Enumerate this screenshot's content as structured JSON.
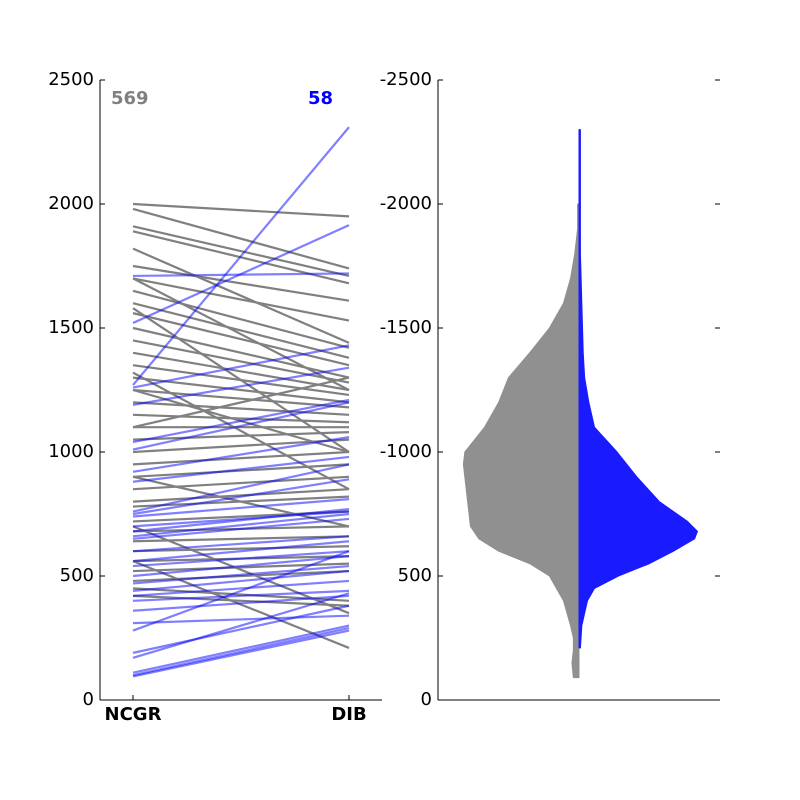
{
  "chart_data": [
    {
      "type": "slope",
      "categories": [
        "NCGR",
        "DIB"
      ],
      "ylim": [
        0,
        2500
      ],
      "yticks": [
        0,
        500,
        1000,
        1500,
        2000,
        2500
      ],
      "series": [
        {
          "label": "569",
          "color": "#808080",
          "opacity": 1,
          "lines": [
            [
              2000,
              1950
            ],
            [
              1980,
              1740
            ],
            [
              1910,
              1710
            ],
            [
              1890,
              1680
            ],
            [
              1820,
              1440
            ],
            [
              1750,
              1610
            ],
            [
              1700,
              1530
            ],
            [
              1650,
              1420
            ],
            [
              1600,
              1380
            ],
            [
              1560,
              1350
            ],
            [
              1500,
              1300
            ],
            [
              1450,
              1280
            ],
            [
              1400,
              1250
            ],
            [
              1350,
              1230
            ],
            [
              1300,
              1200
            ],
            [
              1250,
              1180
            ],
            [
              1200,
              1150
            ],
            [
              1150,
              1120
            ],
            [
              1100,
              1100
            ],
            [
              1050,
              1080
            ],
            [
              1000,
              1050
            ],
            [
              950,
              1000
            ],
            [
              900,
              950
            ],
            [
              850,
              900
            ],
            [
              800,
              850
            ],
            [
              780,
              820
            ],
            [
              720,
              760
            ],
            [
              680,
              700
            ],
            [
              640,
              660
            ],
            [
              600,
              620
            ],
            [
              560,
              580
            ],
            [
              520,
              550
            ],
            [
              480,
              520
            ],
            [
              450,
              400
            ],
            [
              420,
              380
            ],
            [
              560,
              210
            ],
            [
              700,
              350
            ],
            [
              1100,
              1300
            ],
            [
              1250,
              1000
            ],
            [
              900,
              700
            ],
            [
              1320,
              850
            ],
            [
              1580,
              1000
            ],
            [
              1700,
              1250
            ]
          ]
        },
        {
          "label": "58",
          "color": "#0000ff",
          "opacity": 0.5,
          "lines": [
            [
              1270,
              2310
            ],
            [
              1520,
              1915
            ],
            [
              1710,
              1720
            ],
            [
              1260,
              1430
            ],
            [
              1190,
              1340
            ],
            [
              1040,
              1210
            ],
            [
              1010,
              1200
            ],
            [
              920,
              1060
            ],
            [
              880,
              980
            ],
            [
              760,
              950
            ],
            [
              750,
              890
            ],
            [
              740,
              810
            ],
            [
              700,
              760
            ],
            [
              680,
              770
            ],
            [
              660,
              750
            ],
            [
              650,
              730
            ],
            [
              600,
              660
            ],
            [
              560,
              640
            ],
            [
              540,
              600
            ],
            [
              500,
              580
            ],
            [
              470,
              540
            ],
            [
              440,
              520
            ],
            [
              420,
              480
            ],
            [
              400,
              440
            ],
            [
              360,
              420
            ],
            [
              310,
              340
            ],
            [
              280,
              600
            ],
            [
              190,
              380
            ],
            [
              170,
              430
            ],
            [
              110,
              300
            ],
            [
              100,
              290
            ],
            [
              95,
              280
            ]
          ]
        }
      ]
    },
    {
      "type": "violin",
      "ylim": [
        0,
        2500
      ],
      "yticks": [
        {
          "value": 0,
          "label": "0"
        },
        {
          "value": 500,
          "label": "500"
        },
        {
          "value": 1000,
          "label": "-1000"
        },
        {
          "value": 1500,
          "label": "-1500"
        },
        {
          "value": 2000,
          "label": "-2000"
        },
        {
          "value": 2500,
          "label": "-2500"
        }
      ],
      "series": [
        {
          "side": "left",
          "color": "#909090",
          "y": [
            90,
            150,
            200,
            250,
            300,
            400,
            500,
            550,
            600,
            650,
            700,
            750,
            800,
            900,
            950,
            1000,
            1100,
            1200,
            1300,
            1400,
            1500,
            1600,
            1700,
            1800,
            1900,
            2000
          ],
          "density": [
            0.04,
            0.05,
            0.04,
            0.04,
            0.06,
            0.11,
            0.21,
            0.35,
            0.57,
            0.71,
            0.77,
            0.78,
            0.79,
            0.81,
            0.82,
            0.81,
            0.67,
            0.57,
            0.5,
            0.35,
            0.21,
            0.11,
            0.06,
            0.03,
            0.01,
            0.01
          ]
        },
        {
          "side": "right",
          "color": "#1a1aff",
          "y": [
            210,
            300,
            400,
            450,
            500,
            550,
            600,
            650,
            680,
            720,
            800,
            900,
            1000,
            1100,
            1200,
            1300,
            1400,
            1600,
            1800,
            2000,
            2300
          ],
          "density": [
            0.01,
            0.02,
            0.06,
            0.11,
            0.28,
            0.5,
            0.67,
            0.82,
            0.84,
            0.77,
            0.57,
            0.41,
            0.27,
            0.11,
            0.07,
            0.04,
            0.03,
            0.02,
            0.01,
            0.01,
            0.01
          ]
        }
      ]
    }
  ]
}
